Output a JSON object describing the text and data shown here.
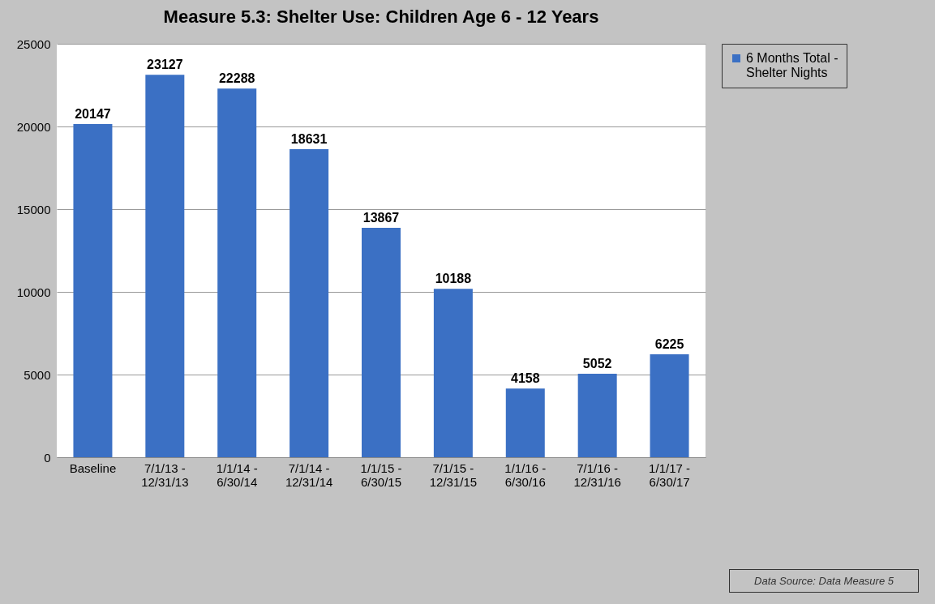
{
  "chart_data": {
    "type": "bar",
    "title": "Measure 5.3: Shelter Use:  Children Age 6 - 12 Years",
    "categories": [
      "Baseline",
      "7/1/13 - 12/31/13",
      "1/1/14 - 6/30/14",
      "7/1/14 - 12/31/14",
      "1/1/15 - 6/30/15",
      "7/1/15 - 12/31/15",
      "1/1/16 - 6/30/16",
      "7/1/16 - 12/31/16",
      "1/1/17 - 6/30/17"
    ],
    "series": [
      {
        "name": "6 Months Total - Shelter Nights",
        "color": "#3b70c4",
        "values": [
          20147,
          23127,
          22288,
          18631,
          13867,
          10188,
          4158,
          5052,
          6225
        ]
      }
    ],
    "ylim": [
      0,
      25000
    ],
    "yticks": [
      0,
      5000,
      10000,
      15000,
      20000,
      25000
    ],
    "grid": "y",
    "legend": "right",
    "data_labels": true,
    "annotations": [
      "Data Source: Data Measure 5"
    ]
  }
}
